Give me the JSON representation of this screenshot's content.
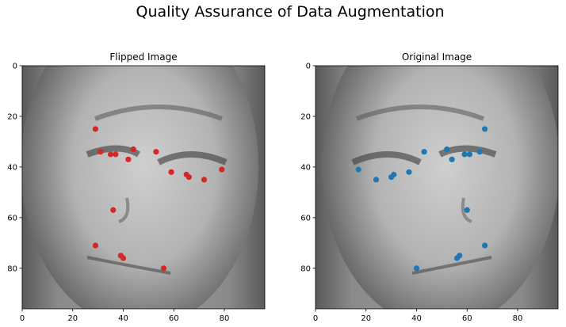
{
  "figure": {
    "suptitle": "Quality Assurance of Data Augmentation"
  },
  "chart_data": [
    {
      "type": "scatter",
      "title": "Flipped Image",
      "background": "grayscale face image",
      "xlim": [
        0,
        96
      ],
      "ylim": [
        96,
        0
      ],
      "xticks": [
        "0",
        "20",
        "40",
        "60",
        "80"
      ],
      "yticks": [
        "0",
        "20",
        "40",
        "60",
        "80"
      ],
      "marker_color": "#d62728",
      "x": [
        29,
        31,
        35,
        37,
        42,
        44,
        53,
        59,
        65,
        66,
        72,
        79,
        36,
        29,
        39,
        40,
        56
      ],
      "y": [
        25,
        34,
        35,
        35,
        37,
        33,
        34,
        42,
        43,
        44,
        45,
        41,
        57,
        71,
        75,
        76,
        80
      ]
    },
    {
      "type": "scatter",
      "title": "Original Image",
      "background": "grayscale face image",
      "xlim": [
        0,
        96
      ],
      "ylim": [
        96,
        0
      ],
      "xticks": [
        "0",
        "20",
        "40",
        "60",
        "80"
      ],
      "yticks": [
        "0",
        "20",
        "40",
        "60",
        "80"
      ],
      "marker_color": "#1f77b4",
      "x": [
        67,
        65,
        61,
        59,
        54,
        52,
        43,
        37,
        31,
        30,
        24,
        17,
        60,
        67,
        57,
        56,
        40
      ],
      "y": [
        25,
        34,
        35,
        35,
        37,
        33,
        34,
        42,
        43,
        44,
        45,
        41,
        57,
        71,
        75,
        76,
        80
      ]
    }
  ]
}
